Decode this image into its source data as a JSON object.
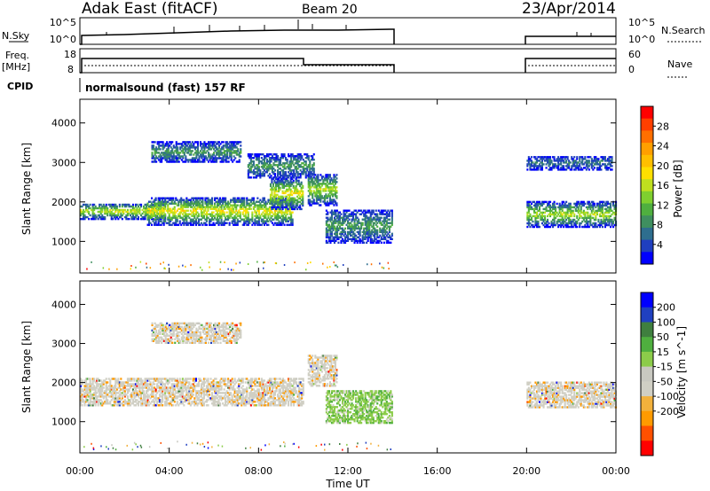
{
  "header": {
    "title": "Adak East (fitACF)",
    "beam": "Beam 20",
    "date": "23/Apr/2014"
  },
  "panels": {
    "nsky_label": "N.Sky",
    "nsky_ticks": [
      "10^5",
      "10^0"
    ],
    "nsearch_label": "N.Search",
    "nsearch_ticks": [
      "10^5",
      "10^0"
    ],
    "freq_label_1": "Freq.",
    "freq_label_2": "[MHz]",
    "freq_ticks": [
      "18",
      "8"
    ],
    "nave_label": "Nave",
    "nave_ticks": [
      "60",
      "0"
    ],
    "cpid_label": "CPID",
    "cpid_text": "normalsound (fast) 157 RF"
  },
  "colors": {
    "power_scale": [
      "#0000ff",
      "#1f3fbf",
      "#2e6e8e",
      "#3f8f5f",
      "#4faf3f",
      "#7fcf2f",
      "#bfdf1f",
      "#ffdf00",
      "#ffbf00",
      "#ff9f00",
      "#ff6f00",
      "#ff3f00",
      "#ff0000"
    ],
    "velocity_scale": [
      "#ff0000",
      "#ff5000",
      "#ff9a00",
      "#f2b13c",
      "#d0cfc4",
      "#c8c8c0",
      "#8ccc4a",
      "#4faf3f",
      "#3f7f3f",
      "#2040c0",
      "#0000ff"
    ],
    "ground_grey": "#c8c8c0"
  },
  "chart_data": [
    {
      "type": "heatmap",
      "name": "power",
      "ylabel": "Slant Range [km]",
      "yticks": [
        1000,
        2000,
        3000,
        4000
      ],
      "ylim": [
        200,
        4600
      ],
      "xlim_hours": [
        0,
        24
      ],
      "colorbar_label": "Power [dB]",
      "colorbar_ticks": [
        4,
        8,
        12,
        16,
        20,
        24,
        28
      ],
      "colorbar_range": [
        0,
        32
      ],
      "regions": [
        {
          "t0": 0.0,
          "t1": 3.8,
          "r0": 1550,
          "r1": 1950,
          "level": 0.55
        },
        {
          "t0": 3.0,
          "t1": 9.5,
          "r0": 1400,
          "r1": 2100,
          "level": 0.6
        },
        {
          "t0": 8.5,
          "t1": 10.0,
          "r0": 1800,
          "r1": 2600,
          "level": 0.6
        },
        {
          "t0": 3.2,
          "t1": 7.2,
          "r0": 3000,
          "r1": 3500,
          "level": 0.3
        },
        {
          "t0": 7.5,
          "t1": 10.5,
          "r0": 2600,
          "r1": 3200,
          "level": 0.3
        },
        {
          "t0": 10.2,
          "t1": 11.5,
          "r0": 1900,
          "r1": 2700,
          "level": 0.5
        },
        {
          "t0": 11.0,
          "t1": 14.0,
          "r0": 950,
          "r1": 1800,
          "level": 0.3
        },
        {
          "t0": 20.0,
          "t1": 24.0,
          "r0": 1350,
          "r1": 2000,
          "level": 0.5
        },
        {
          "t0": 20.0,
          "t1": 23.8,
          "r0": 2800,
          "r1": 3150,
          "level": 0.2
        }
      ]
    },
    {
      "type": "heatmap",
      "name": "velocity",
      "ylabel": "Slant Range [km]",
      "yticks": [
        1000,
        2000,
        3000,
        4000
      ],
      "ylim": [
        200,
        4600
      ],
      "xlim_hours": [
        0,
        24
      ],
      "xticks": [
        "00:00",
        "04:00",
        "08:00",
        "12:00",
        "16:00",
        "20:00",
        "00:00"
      ],
      "xlabel": "Time UT",
      "colorbar_label": "Velocity [m s^-1]",
      "colorbar_ticks": [
        -200,
        -100,
        -50,
        -15,
        15,
        50,
        100,
        200
      ],
      "regions": [
        {
          "t0": 0.0,
          "t1": 10.0,
          "r0": 1400,
          "r1": 2100,
          "level": 0.5
        },
        {
          "t0": 3.2,
          "t1": 7.2,
          "r0": 3000,
          "r1": 3500,
          "level": 0.35
        },
        {
          "t0": 10.2,
          "t1": 11.5,
          "r0": 1900,
          "r1": 2700,
          "level": 0.3
        },
        {
          "t0": 11.0,
          "t1": 14.0,
          "r0": 950,
          "r1": 1800,
          "level": 0.7
        },
        {
          "t0": 20.0,
          "t1": 24.0,
          "r0": 1350,
          "r1": 2000,
          "level": 0.5
        }
      ]
    }
  ]
}
